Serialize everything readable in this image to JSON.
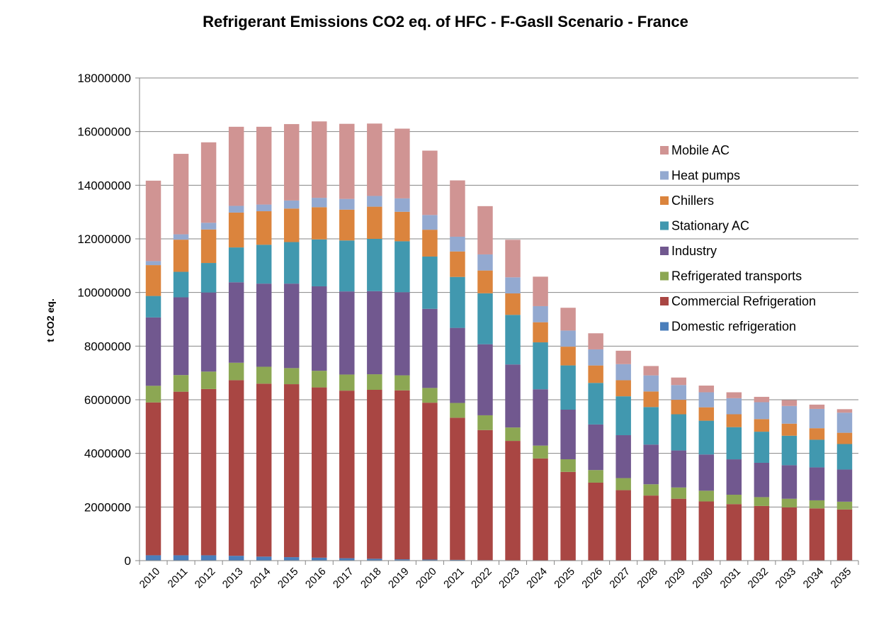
{
  "chart_data": {
    "type": "bar",
    "stacked": true,
    "title": "Refrigerant Emissions CO2 eq. of HFC - F-GasII Scenario - France",
    "ylabel": "t CO2 eq.",
    "xlabel": "",
    "ylim": [
      0,
      18000000
    ],
    "yticks": [
      0,
      2000000,
      4000000,
      6000000,
      8000000,
      10000000,
      12000000,
      14000000,
      16000000,
      18000000
    ],
    "grid": true,
    "legend_position": "right",
    "categories": [
      "2010",
      "2011",
      "2012",
      "2013",
      "2014",
      "2015",
      "2016",
      "2017",
      "2018",
      "2019",
      "2020",
      "2021",
      "2022",
      "2023",
      "2024",
      "2025",
      "2026",
      "2027",
      "2028",
      "2029",
      "2030",
      "2031",
      "2032",
      "2033",
      "2034",
      "2035"
    ],
    "series": [
      {
        "name": "Domestic refrigeration",
        "color": "#4A7EBB",
        "values": [
          200000,
          200000,
          200000,
          180000,
          150000,
          130000,
          110000,
          90000,
          70000,
          50000,
          40000,
          30000,
          20000,
          15000,
          10000,
          10000,
          8000,
          8000,
          8000,
          8000,
          8000,
          8000,
          8000,
          8000,
          8000,
          8000
        ]
      },
      {
        "name": "Commercial Refrigeration",
        "color": "#A94643",
        "values": [
          5700000,
          6100000,
          6200000,
          6550000,
          6450000,
          6450000,
          6350000,
          6250000,
          6300000,
          6300000,
          5850000,
          5300000,
          4850000,
          4450000,
          3800000,
          3300000,
          2900000,
          2620000,
          2420000,
          2300000,
          2200000,
          2100000,
          2030000,
          1980000,
          1940000,
          1900000
        ]
      },
      {
        "name": "Refrigerated transports",
        "color": "#8CA753",
        "values": [
          620000,
          620000,
          650000,
          650000,
          630000,
          600000,
          620000,
          600000,
          580000,
          560000,
          550000,
          550000,
          550000,
          500000,
          480000,
          470000,
          470000,
          450000,
          420000,
          420000,
          400000,
          350000,
          330000,
          320000,
          300000,
          290000
        ]
      },
      {
        "name": "Industry",
        "color": "#71588F",
        "values": [
          2550000,
          2900000,
          2950000,
          3000000,
          3100000,
          3150000,
          3150000,
          3100000,
          3100000,
          3100000,
          2950000,
          2800000,
          2650000,
          2350000,
          2100000,
          1850000,
          1700000,
          1600000,
          1480000,
          1380000,
          1350000,
          1320000,
          1280000,
          1250000,
          1230000,
          1200000
        ]
      },
      {
        "name": "Stationary AC",
        "color": "#4198AF",
        "values": [
          800000,
          950000,
          1100000,
          1300000,
          1450000,
          1550000,
          1750000,
          1900000,
          1950000,
          1900000,
          1950000,
          1900000,
          1900000,
          1850000,
          1750000,
          1650000,
          1550000,
          1450000,
          1400000,
          1350000,
          1260000,
          1200000,
          1160000,
          1100000,
          1030000,
          950000
        ]
      },
      {
        "name": "Chillers",
        "color": "#DB843D",
        "values": [
          1150000,
          1200000,
          1250000,
          1300000,
          1250000,
          1250000,
          1200000,
          1150000,
          1200000,
          1100000,
          1000000,
          950000,
          850000,
          800000,
          750000,
          700000,
          650000,
          600000,
          580000,
          540000,
          500000,
          480000,
          470000,
          450000,
          430000,
          420000
        ]
      },
      {
        "name": "Heat pumps",
        "color": "#93A9D0",
        "values": [
          150000,
          200000,
          250000,
          250000,
          250000,
          300000,
          350000,
          400000,
          400000,
          500000,
          550000,
          550000,
          600000,
          600000,
          600000,
          600000,
          600000,
          600000,
          600000,
          550000,
          560000,
          600000,
          630000,
          660000,
          720000,
          750000
        ]
      },
      {
        "name": "Mobile AC",
        "color": "#D09493",
        "values": [
          3000000,
          3000000,
          3000000,
          2950000,
          2900000,
          2850000,
          2850000,
          2800000,
          2700000,
          2600000,
          2400000,
          2100000,
          1800000,
          1400000,
          1100000,
          850000,
          600000,
          500000,
          350000,
          280000,
          250000,
          220000,
          200000,
          220000,
          160000,
          130000
        ]
      }
    ]
  }
}
